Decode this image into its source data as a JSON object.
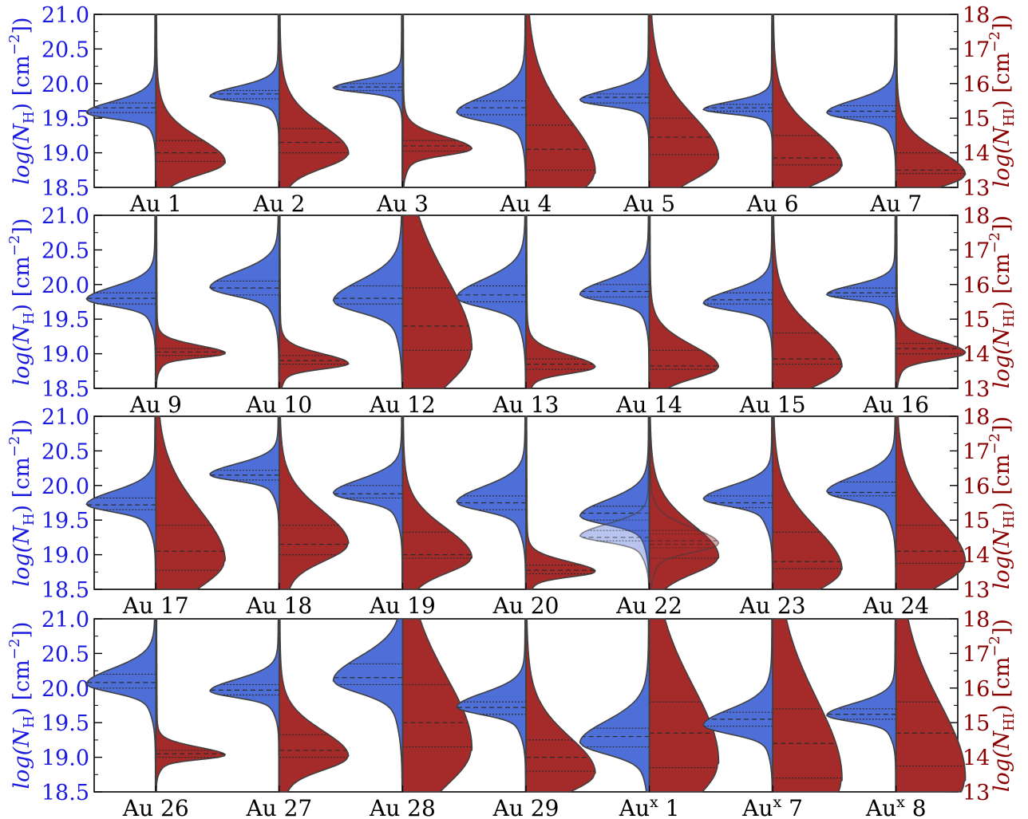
{
  "chart_data": {
    "type": "violin",
    "layout": "4 rows x 7 columns of split violin panels",
    "left_axis": {
      "label_main": "log(N",
      "label_sub": "H",
      "label_unit_open": ") [cm",
      "label_exp": "−2",
      "label_close": "])",
      "ylim": [
        18.5,
        21.0
      ],
      "ticks": [
        "18.5",
        "19.0",
        "19.5",
        "20.0",
        "20.5",
        "21.0"
      ],
      "color": "#1a1adf"
    },
    "right_axis": {
      "label_main": "log(N",
      "label_sub": "HI",
      "label_unit_open": ") [cm",
      "label_exp": "−2",
      "label_close": "])",
      "ylim": [
        13,
        18
      ],
      "ticks": [
        "13",
        "14",
        "15",
        "16",
        "17",
        "18"
      ],
      "color": "#8b0000"
    },
    "colors": {
      "nh": "#4f6fd8",
      "nhi": "#a52a2a",
      "edge": "#404040"
    },
    "rows": [
      {
        "halos": [
          {
            "label": "Au 1",
            "nh": {
              "peak": 19.57,
              "median": 19.65,
              "q1": 19.58,
              "q3": 19.72
            },
            "nhi": {
              "peak": 13.7,
              "median": 14.0,
              "q1": 13.75,
              "q3": 14.35
            }
          },
          {
            "label": "Au 2",
            "nh": {
              "peak": 19.81,
              "median": 19.85,
              "q1": 19.78,
              "q3": 19.9
            },
            "nhi": {
              "peak": 13.95,
              "median": 14.3,
              "q1": 14.0,
              "q3": 14.7
            }
          },
          {
            "label": "Au 3",
            "nh": {
              "peak": 19.93,
              "median": 19.95,
              "q1": 19.9,
              "q3": 20.0
            },
            "nhi": {
              "peak": 14.1,
              "median": 14.2,
              "q1": 14.05,
              "q3": 14.35
            }
          },
          {
            "label": "Au 4",
            "nh": {
              "peak": 19.57,
              "median": 19.65,
              "q1": 19.55,
              "q3": 19.75
            },
            "nhi": {
              "peak": 13.4,
              "median": 14.1,
              "q1": 13.5,
              "q3": 14.8
            }
          },
          {
            "label": "Au 5",
            "nh": {
              "peak": 19.75,
              "median": 19.8,
              "q1": 19.72,
              "q3": 19.85
            },
            "nhi": {
              "peak": 13.8,
              "median": 14.45,
              "q1": 13.95,
              "q3": 15.0
            }
          },
          {
            "label": "Au 6",
            "nh": {
              "peak": 19.62,
              "median": 19.65,
              "q1": 19.6,
              "q3": 19.7
            },
            "nhi": {
              "peak": 13.6,
              "median": 13.85,
              "q1": 13.65,
              "q3": 14.5
            }
          },
          {
            "label": "Au 7",
            "nh": {
              "peak": 19.57,
              "median": 19.6,
              "q1": 19.52,
              "q3": 19.68
            },
            "nhi": {
              "peak": 13.35,
              "median": 13.5,
              "q1": 13.4,
              "q3": 14.0
            }
          }
        ]
      },
      {
        "halos": [
          {
            "label": "Au 9",
            "nh": {
              "peak": 19.78,
              "median": 19.8,
              "q1": 19.72,
              "q3": 19.88
            },
            "nhi": {
              "peak": 14.0,
              "median": 14.05,
              "q1": 13.95,
              "q3": 14.15
            }
          },
          {
            "label": "Au 10",
            "nh": {
              "peak": 19.95,
              "median": 19.95,
              "q1": 19.85,
              "q3": 20.05
            },
            "nhi": {
              "peak": 13.7,
              "median": 13.8,
              "q1": 13.7,
              "q3": 13.95
            }
          },
          {
            "label": "Au 12",
            "nh": {
              "peak": 19.75,
              "median": 19.8,
              "q1": 19.72,
              "q3": 19.98
            },
            "nhi": {
              "peak": 14.1,
              "median": 14.8,
              "q1": 14.1,
              "q3": 15.9
            }
          },
          {
            "label": "Au 13",
            "nh": {
              "peak": 19.8,
              "median": 19.85,
              "q1": 19.75,
              "q3": 19.98
            },
            "nhi": {
              "peak": 13.6,
              "median": 13.7,
              "q1": 13.55,
              "q3": 13.85
            }
          },
          {
            "label": "Au 14",
            "nh": {
              "peak": 19.85,
              "median": 19.9,
              "q1": 19.82,
              "q3": 20.0
            },
            "nhi": {
              "peak": 13.6,
              "median": 13.65,
              "q1": 13.55,
              "q3": 14.1
            }
          },
          {
            "label": "Au 15",
            "nh": {
              "peak": 19.72,
              "median": 19.78,
              "q1": 19.72,
              "q3": 19.88
            },
            "nhi": {
              "peak": 13.6,
              "median": 13.85,
              "q1": 13.7,
              "q3": 14.6
            }
          },
          {
            "label": "Au 16",
            "nh": {
              "peak": 19.85,
              "median": 19.88,
              "q1": 19.83,
              "q3": 19.95
            },
            "nhi": {
              "peak": 14.0,
              "median": 14.15,
              "q1": 14.0,
              "q3": 14.3
            }
          }
        ]
      },
      {
        "halos": [
          {
            "label": "Au 17",
            "nh": {
              "peak": 19.72,
              "median": 19.72,
              "q1": 19.65,
              "q3": 19.82
            },
            "nhi": {
              "peak": 13.8,
              "median": 14.1,
              "q1": 13.55,
              "q3": 14.85
            }
          },
          {
            "label": "Au 18",
            "nh": {
              "peak": 20.15,
              "median": 20.15,
              "q1": 20.08,
              "q3": 20.22
            },
            "nhi": {
              "peak": 14.3,
              "median": 14.3,
              "q1": 14.0,
              "q3": 14.85
            }
          },
          {
            "label": "Au 19",
            "nh": {
              "peak": 19.88,
              "median": 19.88,
              "q1": 19.82,
              "q3": 20.0
            },
            "nhi": {
              "peak": 13.9,
              "median": 14.0,
              "q1": 13.9,
              "q3": 14.65
            }
          },
          {
            "label": "Au 20",
            "nh": {
              "peak": 19.75,
              "median": 19.75,
              "q1": 19.65,
              "q3": 19.85
            },
            "nhi": {
              "peak": 13.5,
              "median": 13.55,
              "q1": 13.45,
              "q3": 13.7
            }
          },
          {
            "label": "Au 22",
            "nh": {
              "peak": 19.55,
              "median": 19.6,
              "q1": 19.5,
              "q3": 19.7
            },
            "nhi": {
              "peak": 13.9,
              "median": 14.3,
              "q1": 13.9,
              "q3": 14.7
            },
            "overlay": {
              "nh": {
                "peak": 19.27,
                "median": 19.25,
                "q1": 19.2,
                "q3": 19.35
              },
              "nhi": {
                "peak": 14.3,
                "median": 14.4,
                "q1": 14.2,
                "q3": 14.6
              }
            }
          },
          {
            "label": "Au 23",
            "nh": {
              "peak": 19.8,
              "median": 19.75,
              "q1": 19.68,
              "q3": 19.85
            },
            "nhi": {
              "peak": 13.55,
              "median": 13.8,
              "q1": 13.6,
              "q3": 14.65
            }
          },
          {
            "label": "Au 24",
            "nh": {
              "peak": 19.9,
              "median": 19.9,
              "q1": 19.85,
              "q3": 20.05
            },
            "nhi": {
              "peak": 13.75,
              "median": 14.1,
              "q1": 13.75,
              "q3": 14.85
            }
          }
        ]
      },
      {
        "halos": [
          {
            "label": "Au 26",
            "nh": {
              "peak": 20.05,
              "median": 20.08,
              "q1": 20.0,
              "q3": 20.2
            },
            "nhi": {
              "peak": 14.05,
              "median": 14.1,
              "q1": 14.0,
              "q3": 14.2
            }
          },
          {
            "label": "Au 27",
            "nh": {
              "peak": 19.95,
              "median": 19.97,
              "q1": 19.9,
              "q3": 20.05
            },
            "nhi": {
              "peak": 14.0,
              "median": 14.2,
              "q1": 14.0,
              "q3": 14.65
            }
          },
          {
            "label": "Au 28",
            "nh": {
              "peak": 20.1,
              "median": 20.15,
              "q1": 20.05,
              "q3": 20.35
            },
            "nhi": {
              "peak": 14.2,
              "median": 15.0,
              "q1": 14.3,
              "q3": 16.1
            }
          },
          {
            "label": "Au 29",
            "nh": {
              "peak": 19.72,
              "median": 19.72,
              "q1": 19.62,
              "q3": 19.8
            },
            "nhi": {
              "peak": 13.5,
              "median": 14.0,
              "q1": 13.6,
              "q3": 14.5
            }
          },
          {
            "label": "Au",
            "label_sup": "x",
            "label_num": "1",
            "nh": {
              "peak": 19.2,
              "median": 19.3,
              "q1": 19.15,
              "q3": 19.42
            },
            "nhi": {
              "peak": 13.8,
              "median": 14.7,
              "q1": 13.7,
              "q3": 15.6
            }
          },
          {
            "label": "Au",
            "label_sup": "x",
            "label_num": "7",
            "nh": {
              "peak": 19.45,
              "median": 19.55,
              "q1": 19.45,
              "q3": 19.65
            },
            "nhi": {
              "peak": 13.3,
              "median": 14.4,
              "q1": 13.4,
              "q3": 15.4
            }
          },
          {
            "label": "Au",
            "label_sup": "x",
            "label_num": "8",
            "nh": {
              "peak": 19.6,
              "median": 19.62,
              "q1": 19.55,
              "q3": 19.7
            },
            "nhi": {
              "peak": 13.3,
              "median": 14.7,
              "q1": 13.75,
              "q3": 15.6
            }
          }
        ]
      }
    ]
  }
}
